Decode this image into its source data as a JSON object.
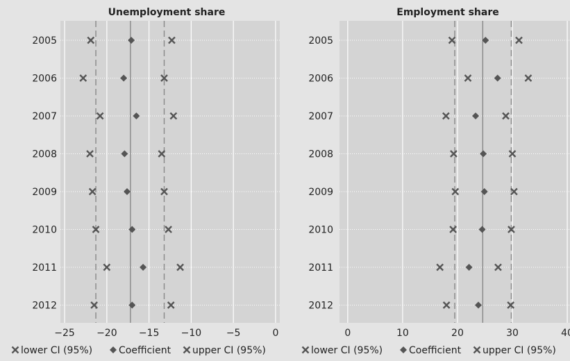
{
  "chart_data": [
    {
      "type": "scatter",
      "title": "Unemployment share",
      "categories": [
        "2005",
        "2006",
        "2007",
        "2008",
        "2009",
        "2010",
        "2011",
        "2012"
      ],
      "xlim": [
        -25.5,
        0.5
      ],
      "xticks": [
        "-25",
        "-20",
        "-15",
        "-10",
        "-5",
        "0"
      ],
      "series": [
        {
          "name": "lower CI (95%)",
          "marker": "x",
          "values": [
            -21.9,
            -22.8,
            -20.8,
            -22.0,
            -21.7,
            -21.3,
            -20.0,
            -21.5
          ]
        },
        {
          "name": "Coefficient",
          "marker": "diamond",
          "values": [
            -17.1,
            -18.0,
            -16.5,
            -17.9,
            -17.6,
            -17.0,
            -15.7,
            -17.0
          ]
        },
        {
          "name": "upper CI (95%)",
          "marker": "x",
          "values": [
            -12.3,
            -13.2,
            -12.1,
            -13.5,
            -13.2,
            -12.7,
            -11.3,
            -12.4
          ]
        }
      ],
      "reference_lines": {
        "solid": -17.2,
        "dashed": [
          -21.3,
          -13.2
        ]
      },
      "grid": true,
      "legend_position": "bottom"
    },
    {
      "type": "scatter",
      "title": "Employment share",
      "categories": [
        "2005",
        "2006",
        "2007",
        "2008",
        "2009",
        "2010",
        "2011",
        "2012"
      ],
      "xlim": [
        -1.5,
        40.5
      ],
      "xticks": [
        "0",
        "10",
        "20",
        "30",
        "40"
      ],
      "series": [
        {
          "name": "lower CI (95%)",
          "marker": "x",
          "values": [
            19.0,
            21.9,
            17.9,
            19.3,
            19.6,
            19.2,
            16.8,
            18.0
          ]
        },
        {
          "name": "Coefficient",
          "marker": "diamond",
          "values": [
            25.1,
            27.3,
            23.3,
            24.7,
            24.9,
            24.5,
            22.1,
            23.8
          ]
        },
        {
          "name": "upper CI (95%)",
          "marker": "x",
          "values": [
            31.2,
            32.9,
            28.8,
            30.0,
            30.3,
            29.8,
            27.4,
            29.7
          ]
        }
      ],
      "reference_lines": {
        "solid": 24.6,
        "dashed": [
          19.5,
          29.8
        ]
      },
      "grid": true,
      "legend_position": "bottom"
    }
  ]
}
